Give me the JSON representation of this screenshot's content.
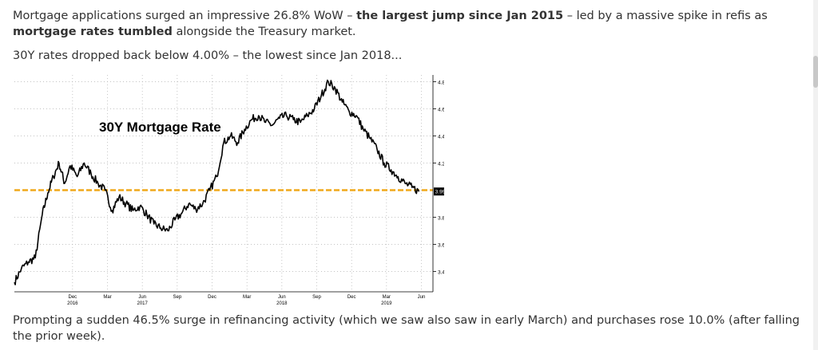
{
  "text": {
    "p1_a": "Mortgage applications surged an impressive 26.8% WoW – ",
    "p1_b": "the largest jump since Jan 2015",
    "p1_c": " – led by a massive spike in refis as ",
    "p1_d": "mortgage rates tumbled",
    "p1_e": " alongside the Treasury market.",
    "p2": "30Y rates dropped back below 4.00% – the lowest since Jan 2018...",
    "p3": "Prompting a sudden 46.5% surge in refinancing activity (which we saw also saw in early March) and purchases rose 10.0% (after falling the prior week)."
  },
  "colors": {
    "line": "#000000",
    "reference": "#f0a91c",
    "grid": "#b0b0b0",
    "marker_bg": "#000000"
  },
  "chart_data": {
    "type": "line",
    "title": "30Y Mortgage Rate",
    "ylim": [
      3.25,
      4.85
    ],
    "yticks": [
      "4.80",
      "4.60",
      "4.40",
      "4.20",
      "3.80",
      "3.60",
      "3.40"
    ],
    "ytick_values": [
      4.8,
      4.6,
      4.4,
      4.2,
      3.8,
      3.6,
      3.4
    ],
    "last_value_label": "3.99",
    "last_value": 3.99,
    "reference_line": 4.0,
    "x_tick_labels": [
      "Dec",
      "Mar",
      "Jun",
      "Sep",
      "Dec",
      "Mar",
      "Jun",
      "Sep",
      "Dec",
      "Mar",
      "Jun"
    ],
    "x_tick_dates": [
      2016.917,
      2017.167,
      2017.417,
      2017.667,
      2017.917,
      2018.167,
      2018.417,
      2018.667,
      2018.917,
      2019.167,
      2019.417
    ],
    "x_year_labels": [
      "2016",
      "2017",
      "2018",
      "2019"
    ],
    "x_year_dates": [
      2016.917,
      2017.417,
      2018.417,
      2019.167
    ],
    "xlim": [
      2016.5,
      2019.5
    ],
    "series": [
      {
        "x": [
          2016.5,
          2016.55,
          2016.6,
          2016.65,
          2016.7,
          2016.74,
          2016.78,
          2016.82,
          2016.86,
          2016.9,
          2016.95,
          2017.0,
          2017.05,
          2017.1,
          2017.15,
          2017.2,
          2017.25,
          2017.3,
          2017.35,
          2017.4,
          2017.45,
          2017.5,
          2017.55,
          2017.6,
          2017.65,
          2017.7,
          2017.75,
          2017.8,
          2017.85,
          2017.9,
          2017.95,
          2018.0,
          2018.05,
          2018.1,
          2018.15,
          2018.2,
          2018.25,
          2018.3,
          2018.35,
          2018.4,
          2018.45,
          2018.5,
          2018.55,
          2018.6,
          2018.65,
          2018.7,
          2018.75,
          2018.8,
          2018.85,
          2018.9,
          2018.95,
          2019.0,
          2019.05,
          2019.1,
          2019.15,
          2019.2,
          2019.25,
          2019.3,
          2019.35,
          2019.4
        ],
        "y": [
          3.32,
          3.42,
          3.47,
          3.5,
          3.82,
          3.98,
          4.1,
          4.2,
          4.05,
          4.18,
          4.1,
          4.2,
          4.12,
          4.05,
          4.0,
          3.85,
          3.95,
          3.9,
          3.85,
          3.88,
          3.82,
          3.75,
          3.72,
          3.7,
          3.78,
          3.83,
          3.9,
          3.86,
          3.9,
          4.0,
          4.1,
          4.35,
          4.4,
          4.35,
          4.45,
          4.52,
          4.55,
          4.5,
          4.48,
          4.53,
          4.55,
          4.52,
          4.5,
          4.55,
          4.6,
          4.7,
          4.8,
          4.75,
          4.65,
          4.58,
          4.55,
          4.45,
          4.38,
          4.3,
          4.2,
          4.15,
          4.1,
          4.05,
          4.02,
          3.99
        ]
      }
    ]
  }
}
